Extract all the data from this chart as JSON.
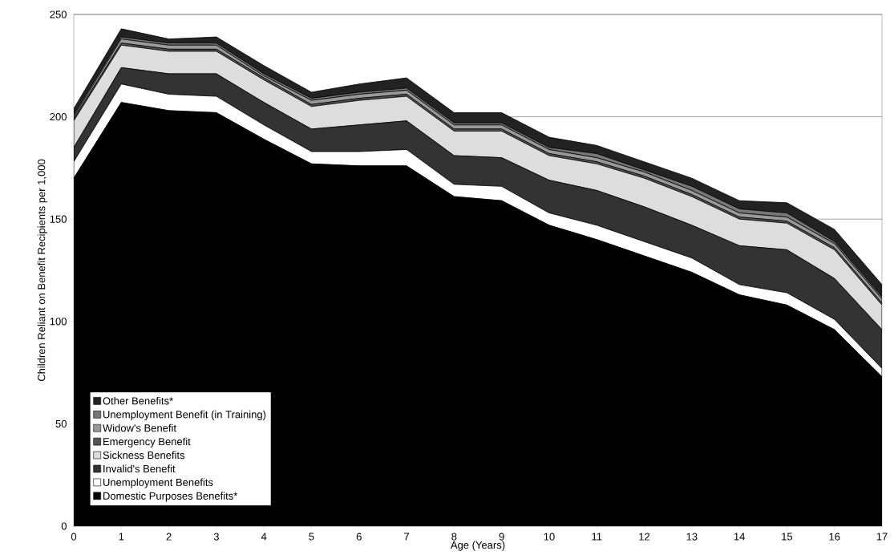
{
  "chart_data": {
    "type": "area",
    "stacked": true,
    "xlabel": "Age (Years)",
    "ylabel": "Children Reliant on Benefit Recipients per 1,000",
    "x": [
      0,
      1,
      2,
      3,
      4,
      5,
      6,
      7,
      8,
      9,
      10,
      11,
      12,
      13,
      14,
      15,
      16,
      17
    ],
    "xlim": [
      0,
      17
    ],
    "xticks": [
      0,
      1,
      2,
      3,
      4,
      5,
      6,
      7,
      8,
      9,
      10,
      11,
      12,
      13,
      14,
      15,
      16,
      17
    ],
    "ylim": [
      0,
      250
    ],
    "yticks": [
      0,
      50,
      100,
      150,
      200,
      250
    ],
    "grid": "y",
    "legend": "bottom left",
    "series": [
      {
        "name": "Domestic Purposes Benefits*",
        "color": "#000000",
        "values": [
          170,
          207,
          203,
          202,
          189,
          177,
          176,
          176,
          161,
          159,
          147,
          140,
          132,
          124,
          113,
          108,
          96,
          73
        ]
      },
      {
        "name": "Unemployment Benefits",
        "color": "#ffffff",
        "values": [
          8,
          9,
          8,
          8,
          7,
          6,
          7,
          8,
          6,
          7,
          6,
          7,
          7,
          7,
          5,
          6,
          5,
          4
        ]
      },
      {
        "name": "Invalid's Benefit",
        "color": "#333333",
        "values": [
          7,
          8,
          10,
          11,
          11,
          11,
          13,
          14,
          14,
          14,
          16,
          17,
          17,
          16,
          19,
          21,
          20,
          19
        ]
      },
      {
        "name": "Sickness Benefits",
        "color": "#dddddd",
        "values": [
          13,
          11,
          11,
          11,
          11,
          11,
          12,
          12,
          12,
          13,
          12,
          13,
          14,
          14,
          13,
          13,
          14,
          12
        ]
      },
      {
        "name": "Emergency Benefit",
        "color": "#555555",
        "values": [
          1,
          1,
          1,
          1,
          1,
          1,
          1,
          1,
          1,
          1,
          1,
          1,
          1,
          1,
          1,
          1,
          1,
          1
        ]
      },
      {
        "name": "Widow's Benefit",
        "color": "#999999",
        "values": [
          1,
          2,
          2,
          2,
          1,
          2,
          2,
          2,
          2,
          2,
          2,
          2,
          2,
          2,
          2,
          2,
          2,
          2
        ]
      },
      {
        "name": "Unemployment Benefit (in Training)",
        "color": "#777777",
        "values": [
          1,
          1,
          1,
          1,
          1,
          1,
          1,
          1,
          1,
          1,
          1,
          2,
          1,
          2,
          2,
          2,
          1,
          1
        ]
      },
      {
        "name": "Other Benefits*",
        "color": "#222222",
        "values": [
          3,
          4,
          2,
          3,
          4,
          3,
          4,
          5,
          5,
          5,
          5,
          4,
          4,
          4,
          4,
          5,
          6,
          6
        ]
      }
    ]
  }
}
